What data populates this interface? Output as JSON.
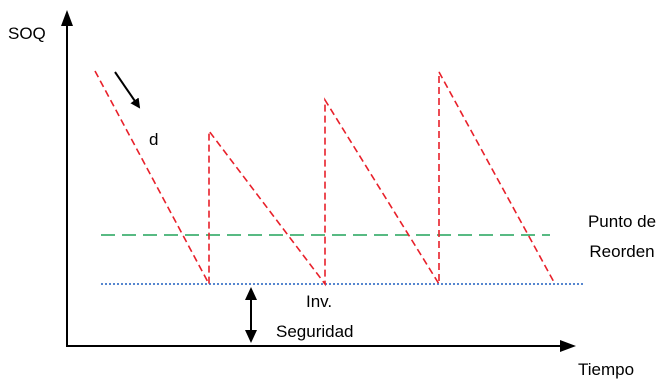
{
  "labels": {
    "y_axis": "SOQ",
    "x_axis": "Tiempo",
    "demand": "d",
    "reorder_line1": "Punto de",
    "reorder_line2": "Reorden",
    "safety_line1": "Inv.",
    "safety_line2": "Seguridad"
  },
  "colors": {
    "axis": "#000000",
    "inventory": "#e8202a",
    "reorder": "#21a35a",
    "safety": "#1f5fbf"
  }
}
